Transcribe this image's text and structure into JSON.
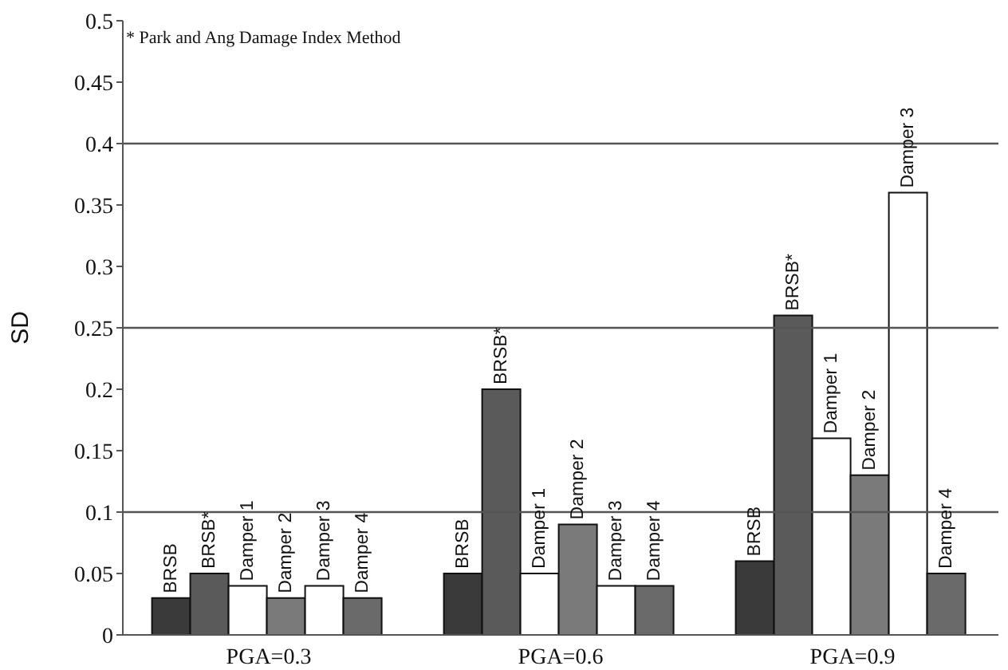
{
  "chart_data": {
    "type": "bar",
    "ylabel": "SD",
    "annotations": [
      "* Park and Ang Damage Index Method"
    ],
    "categories": [
      "PGA=0.3",
      "PGA=0.6",
      "PGA=0.9"
    ],
    "series": [
      {
        "name": "BRSB",
        "color": "#3a3a3a",
        "values": [
          0.03,
          0.05,
          0.06
        ]
      },
      {
        "name": "BRSB*",
        "color": "#5a5a5a",
        "values": [
          0.05,
          0.2,
          0.26
        ]
      },
      {
        "name": "Damper 1",
        "color": "#ffffff",
        "values": [
          0.04,
          0.05,
          0.16
        ]
      },
      {
        "name": "Damper 2",
        "color": "#7a7a7a",
        "values": [
          0.03,
          0.09,
          0.13
        ]
      },
      {
        "name": "Damper 3",
        "color": "#ffffff",
        "values": [
          0.04,
          0.04,
          0.36
        ]
      },
      {
        "name": "Damper 4",
        "color": "#6a6a6a",
        "values": [
          0.03,
          0.04,
          0.05
        ]
      }
    ],
    "ylim": [
      0,
      0.5
    ],
    "yticks": [
      0,
      0.05,
      0.1,
      0.15,
      0.2,
      0.25,
      0.3,
      0.35,
      0.4,
      0.45,
      0.5
    ],
    "ref_lines": [
      {
        "axis": "y",
        "value": 0.1,
        "color": "#555555"
      },
      {
        "axis": "y",
        "value": 0.25,
        "color": "#555555"
      },
      {
        "axis": "y",
        "value": 0.4,
        "color": "#555555"
      }
    ]
  }
}
